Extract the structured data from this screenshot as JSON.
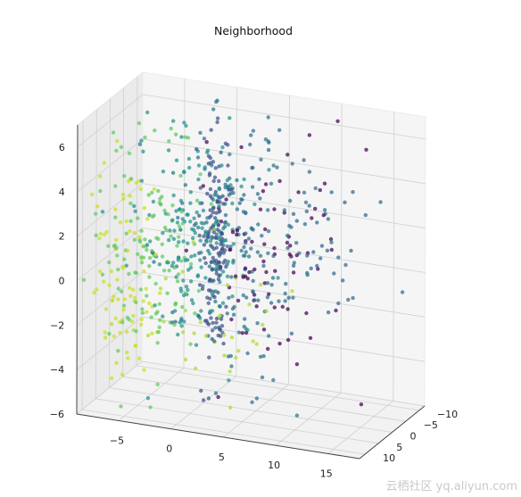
{
  "chart_data": {
    "type": "scatter",
    "subtype": "3d-scatter",
    "title": "Neighborhood",
    "colormap": "viridis",
    "grid": true,
    "x_axis": {
      "ticks": [
        "−5",
        "0",
        "5",
        "10",
        "15"
      ],
      "range": [
        -9,
        18
      ]
    },
    "y_axis": {
      "ticks": [
        "−10",
        "−5",
        "0",
        "5",
        "10"
      ],
      "range": [
        -12,
        12
      ]
    },
    "z_axis": {
      "ticks": [
        "−6",
        "−4",
        "−2",
        "0",
        "2",
        "4",
        "6"
      ],
      "range": [
        -6,
        7
      ]
    },
    "clusters": [
      {
        "cx": -6,
        "cy": 6,
        "cz": 0,
        "sx": 1.5,
        "sy": 3,
        "sz": 2.5,
        "color": "#c7e020",
        "n": 80
      },
      {
        "cx": -3.5,
        "cy": 5,
        "cz": 1,
        "sx": 2.5,
        "sy": 3.5,
        "sz": 2.5,
        "color": "#5ec962",
        "n": 130
      },
      {
        "cx": -1,
        "cy": 2,
        "cz": 1.5,
        "sx": 2.5,
        "sy": 4,
        "sz": 2.5,
        "color": "#21918c",
        "n": 170
      },
      {
        "cx": 1,
        "cy": 0,
        "cz": 0.5,
        "sx": 0.7,
        "sy": 1,
        "sz": 2.8,
        "color": "#3b528b",
        "n": 140
      },
      {
        "cx": 3,
        "cy": -1,
        "cz": 1,
        "sx": 3,
        "sy": 4,
        "sz": 2.8,
        "color": "#2c728e",
        "n": 170
      },
      {
        "cx": 6,
        "cy": -2,
        "cz": 1.5,
        "sx": 3,
        "sy": 4,
        "sz": 2.5,
        "color": "#440154",
        "n": 80
      },
      {
        "cx": 9,
        "cy": -5,
        "cz": 1,
        "sx": 3,
        "sy": 3.5,
        "sz": 2,
        "color": "#31688e",
        "n": 45
      },
      {
        "cx": 2,
        "cy": 3,
        "cz": -2,
        "sx": 4,
        "sy": 3,
        "sz": 1.5,
        "color": "#addc30",
        "n": 40
      }
    ]
  },
  "watermark": "云栖社区 yq.aliyun.com"
}
